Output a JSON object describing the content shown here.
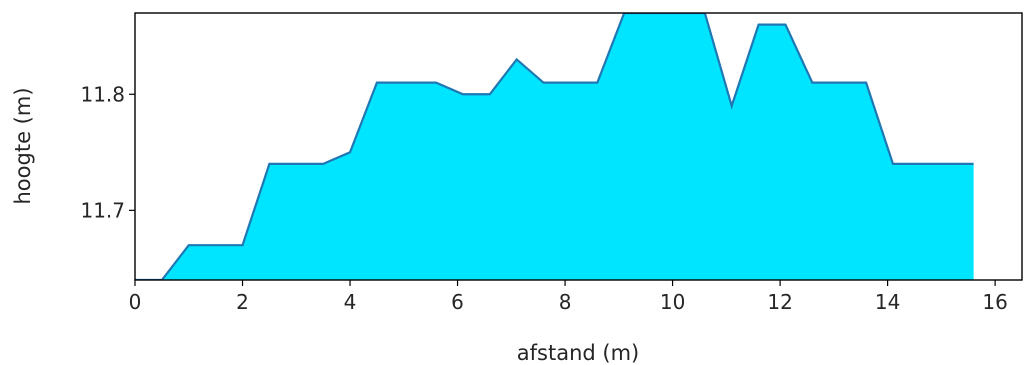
{
  "chart_data": {
    "type": "area",
    "title": "",
    "xlabel": "afstand (m)",
    "ylabel": "hoogte (m)",
    "xlim": [
      0,
      16.5
    ],
    "ylim": [
      11.64,
      11.87
    ],
    "xticks": [
      0,
      2,
      4,
      6,
      8,
      10,
      12,
      14,
      16
    ],
    "yticks": [
      11.7,
      11.8
    ],
    "grid": false,
    "fill_color": "#00e5ff",
    "line_color": "#1f77b4",
    "series": [
      {
        "x": [
          0,
          0.5,
          1.0,
          1.5,
          2.0,
          2.5,
          3.0,
          3.5,
          4.0,
          4.5,
          5.0,
          5.6,
          6.1,
          6.6,
          7.1,
          7.6,
          8.1,
          8.6,
          9.1,
          9.6,
          10.1,
          10.6,
          11.1,
          11.6,
          12.1,
          12.6,
          13.1,
          13.6,
          14.1,
          14.6,
          15.1,
          15.6
        ],
        "y": [
          11.64,
          11.64,
          11.67,
          11.67,
          11.67,
          11.74,
          11.74,
          11.74,
          11.75,
          11.81,
          11.81,
          11.81,
          11.8,
          11.8,
          11.83,
          11.81,
          11.81,
          11.81,
          11.87,
          11.87,
          11.87,
          11.87,
          11.79,
          11.86,
          11.86,
          11.81,
          11.81,
          11.81,
          11.74,
          11.74,
          11.74,
          11.74
        ]
      }
    ]
  }
}
